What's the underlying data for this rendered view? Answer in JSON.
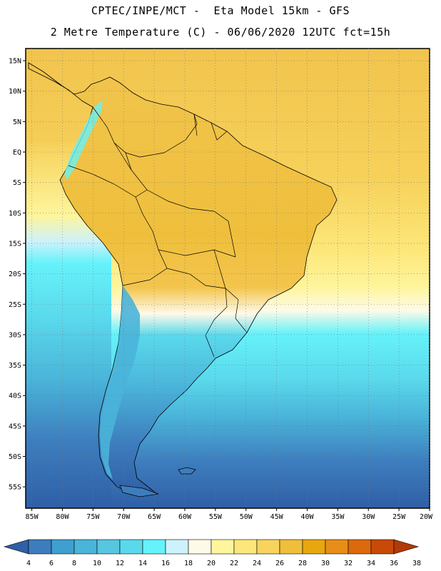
{
  "header": {
    "line1": "CPTEC/INPE/MCT -  Eta Model 15km - GFS",
    "line2": "2 Metre Temperature (C) - 06/06/2020 12UTC fct=15h"
  },
  "map": {
    "lat_labels": [
      "15N",
      "10N",
      "5N",
      "EQ",
      "5S",
      "10S",
      "15S",
      "20S",
      "25S",
      "30S",
      "35S",
      "40S",
      "45S",
      "50S",
      "55S"
    ],
    "lon_labels": [
      "85W",
      "80W",
      "75W",
      "70W",
      "65W",
      "60W",
      "55W",
      "50W",
      "45W",
      "40W",
      "35W",
      "30W",
      "25W",
      "20W"
    ],
    "lat_values": [
      15,
      10,
      5,
      0,
      -5,
      -10,
      -15,
      -20,
      -25,
      -30,
      -35,
      -40,
      -45,
      -50,
      -55
    ],
    "lon_values": [
      -85,
      -80,
      -75,
      -70,
      -65,
      -60,
      -55,
      -50,
      -45,
      -40,
      -35,
      -30,
      -25,
      -20
    ],
    "lon_range": [
      -86,
      -20
    ],
    "lat_range": [
      -58.5,
      17
    ]
  },
  "colorbar": {
    "labels": [
      "4",
      "6",
      "8",
      "10",
      "12",
      "14",
      "16",
      "18",
      "20",
      "22",
      "24",
      "26",
      "28",
      "30",
      "32",
      "34",
      "36",
      "38"
    ],
    "colors": [
      "#2f5fa6",
      "#3d7dbe",
      "#3f9fce",
      "#4ab4d9",
      "#57c6e1",
      "#5ad9ec",
      "#66f2fa",
      "#cdf2fb",
      "#fefae8",
      "#fef59d",
      "#fde77a",
      "#f8d45e",
      "#efbf3c",
      "#e8a70f",
      "#e88d18",
      "#dc6a0c",
      "#c84a06",
      "#b13a06"
    ]
  },
  "colors": {
    "land_warm": "#f3c54d",
    "land_hot": "#eeb23a",
    "sea_warm": "#f6d15a",
    "sea_mild": "#fef59d",
    "sea_cool": "#66f2fa",
    "sea_cold": "#3f9fce",
    "sea_coldest": "#2f5fa6",
    "andes": "#4ab4d9"
  }
}
